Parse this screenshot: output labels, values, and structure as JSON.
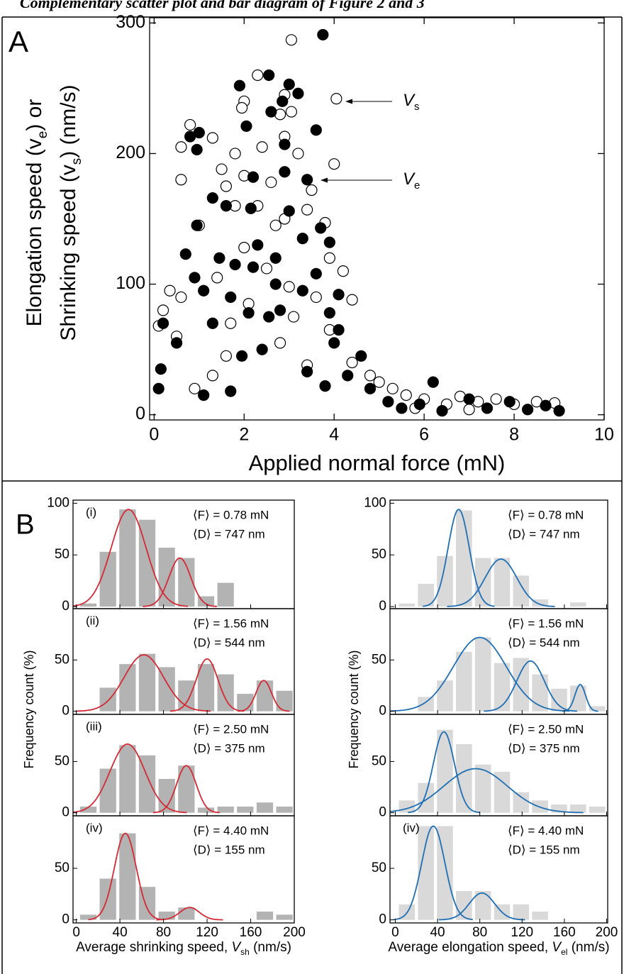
{
  "header": {
    "title": "Complementary scatter plot and bar diagram of Figure 2 and 3"
  },
  "panel_labels": [
    "A",
    "B"
  ],
  "chart_data": [
    {
      "type": "scatter",
      "xlabel": [
        {
          "text": "Applied normal force (mN)"
        }
      ],
      "ylabel": [
        [
          {
            "text": "Elongation speed (v"
          },
          {
            "text": "e",
            "style": "sub"
          },
          {
            "text": ") or"
          }
        ],
        [
          {
            "text": "Shrinking speed (v"
          },
          {
            "text": "s",
            "style": "sub"
          },
          {
            "text": ") (nm/s)"
          }
        ]
      ],
      "xlim": [
        -0.1,
        10
      ],
      "ylim": [
        -4,
        304
      ],
      "xticks": [
        0,
        2,
        4,
        6,
        8,
        10
      ],
      "yticks": [
        0,
        100,
        200,
        300
      ],
      "annotations": [
        [
          {
            "text": "V",
            "style": "italic"
          },
          {
            "text": "s",
            "style": "sub"
          }
        ],
        [
          {
            "text": "V",
            "style": "italic"
          },
          {
            "text": "e",
            "style": "sub"
          }
        ]
      ],
      "series": [
        {
          "marker": "open",
          "color": "#000000",
          "x": [
            3.05,
            2.3,
            4.05,
            2.9,
            2.0,
            1.95,
            3.05,
            2.8,
            0.8,
            1.3,
            0.6,
            1.8,
            2.4,
            4.0,
            3.2,
            2.9,
            1.5,
            2.0,
            3.5,
            2.6,
            1.6,
            0.6,
            1.8,
            2.3,
            3.4,
            2.9,
            3.8,
            1.0,
            2.7,
            2.0,
            3.9,
            2.5,
            1.4,
            0.35,
            0.6,
            3.0,
            4.2,
            3.6,
            0.2,
            2.1,
            1.7,
            3.9,
            4.4,
            0.1,
            0.5,
            1.6,
            4.4,
            3.4,
            4.8,
            5.0,
            5.3,
            5.6,
            6.0,
            6.5,
            6.8,
            7.2,
            7.6,
            8.0,
            8.5,
            8.9,
            5.8,
            7.0,
            1.3,
            0.9,
            2.8,
            3.1
          ],
          "y": [
            287,
            260,
            242,
            245,
            240,
            235,
            232,
            230,
            222,
            212,
            205,
            200,
            205,
            192,
            200,
            213,
            188,
            183,
            172,
            178,
            175,
            180,
            160,
            160,
            157,
            150,
            147,
            145,
            145,
            128,
            120,
            112,
            105,
            95,
            90,
            98,
            110,
            90,
            80,
            85,
            70,
            65,
            88,
            68,
            60,
            45,
            40,
            38,
            30,
            25,
            20,
            15,
            12,
            8,
            14,
            10,
            12,
            8,
            10,
            9,
            5,
            4,
            30,
            20,
            55,
            75
          ]
        },
        {
          "marker": "filled",
          "color": "#000000",
          "x": [
            3.75,
            2.55,
            1.9,
            3.0,
            3.2,
            2.85,
            2.6,
            3.6,
            2.05,
            1.0,
            0.8,
            0.95,
            2.9,
            2.2,
            3.4,
            2.9,
            1.3,
            1.6,
            3.0,
            2.15,
            0.95,
            3.7,
            3.3,
            2.3,
            0.7,
            1.45,
            2.7,
            3.9,
            1.8,
            2.2,
            0.9,
            3.6,
            1.1,
            4.1,
            1.7,
            2.7,
            3.3,
            2.1,
            2.8,
            3.9,
            1.3,
            0.2,
            4.1,
            0.5,
            2.4,
            1.95,
            0.15,
            1.1,
            1.7,
            3.4,
            4.3,
            4.6,
            4.8,
            5.2,
            5.5,
            5.9,
            6.2,
            6.4,
            7.0,
            7.4,
            7.9,
            8.3,
            8.7,
            9.0,
            0.1,
            4.0,
            3.8,
            2.55
          ],
          "y": [
            291,
            260,
            252,
            253,
            246,
            240,
            232,
            218,
            221,
            216,
            213,
            203,
            207,
            182,
            180,
            186,
            166,
            160,
            156,
            158,
            145,
            143,
            135,
            130,
            123,
            120,
            120,
            132,
            115,
            113,
            105,
            108,
            95,
            92,
            90,
            100,
            95,
            78,
            80,
            78,
            70,
            70,
            65,
            55,
            50,
            45,
            35,
            15,
            18,
            33,
            30,
            45,
            20,
            10,
            5,
            8,
            25,
            3,
            12,
            5,
            10,
            4,
            7,
            3,
            20,
            55,
            22,
            75
          ]
        }
      ]
    },
    {
      "type": "histogram",
      "label": "(i)",
      "stats": [
        "⟨F⟩ = 0.78 mN",
        "⟨D⟩ =  747 nm"
      ],
      "ylabel": "Frequency count (%)",
      "bins": [
        2,
        20,
        38,
        56,
        74,
        92,
        110,
        128,
        146
      ],
      "counts": [
        3,
        53,
        94,
        84,
        57,
        47,
        10,
        23
      ],
      "color": "#b3b3b3",
      "fit_color": "#d42a35",
      "fits": [
        {
          "mean": 48,
          "amp": 94,
          "sd": 16
        },
        {
          "mean": 95,
          "amp": 47,
          "sd": 10
        }
      ],
      "xlim": [
        -3,
        200
      ],
      "ylim": [
        -2,
        103
      ],
      "yticks": [
        0,
        50,
        100
      ]
    },
    {
      "type": "histogram",
      "label": "(ii)",
      "stats": [
        "⟨F⟩ = 1.56 mN",
        "⟨D⟩ = 544 nm"
      ],
      "bins": [
        20,
        38,
        56,
        74,
        92,
        110,
        128,
        146,
        164,
        182,
        200
      ],
      "counts": [
        23,
        46,
        56,
        43,
        30,
        46,
        36,
        17,
        30,
        20
      ],
      "color": "#b3b3b3",
      "fit_color": "#d42a35",
      "fits": [
        {
          "mean": 62,
          "amp": 55,
          "sd": 18
        },
        {
          "mean": 120,
          "amp": 51,
          "sd": 10
        },
        {
          "mean": 172,
          "amp": 30,
          "sd": 7
        }
      ],
      "xlim": [
        -3,
        200
      ],
      "ylim": [
        -3,
        100
      ],
      "yticks": [
        0,
        50
      ]
    },
    {
      "type": "histogram",
      "label": "(iii)",
      "stats": [
        "⟨F⟩ = 2.50 mN",
        "⟨D⟩ = 375 nm"
      ],
      "bins": [
        2,
        20,
        38,
        56,
        74,
        92,
        110,
        128,
        146,
        164,
        182,
        200
      ],
      "counts": [
        6,
        43,
        66,
        56,
        33,
        46,
        5,
        6,
        6,
        10,
        6
      ],
      "color": "#b3b3b3",
      "fit_color": "#d42a35",
      "fits": [
        {
          "mean": 47,
          "amp": 67,
          "sd": 16
        },
        {
          "mean": 101,
          "amp": 46,
          "sd": 9
        }
      ],
      "xlim": [
        -3,
        200
      ],
      "ylim": [
        -3,
        96
      ],
      "yticks": [
        0,
        50
      ]
    },
    {
      "type": "histogram",
      "label": "(iv)",
      "stats": [
        "⟨F⟩ = 4.40 mN",
        "⟨D⟩ = 155 nm"
      ],
      "xlabel": [
        {
          "text": "Average shrinking speed, "
        },
        {
          "text": "V",
          "style": "italic"
        },
        {
          "text": "sh",
          "style": "sub"
        },
        {
          "text": " (nm/s)"
        }
      ],
      "bins": [
        2,
        20,
        38,
        56,
        74,
        92,
        110,
        128,
        146,
        164,
        182,
        200
      ],
      "counts": [
        5,
        40,
        84,
        32,
        8,
        12,
        0,
        0,
        0,
        8,
        5
      ],
      "color": "#b3b3b3",
      "fit_color": "#d42a35",
      "fits": [
        {
          "mean": 45,
          "amp": 84,
          "sd": 10
        },
        {
          "mean": 104,
          "amp": 12,
          "sd": 9
        }
      ],
      "xlim": [
        -3,
        200
      ],
      "ylim": [
        -3,
        101
      ],
      "yticks": [
        0,
        50
      ],
      "xticks": [
        0,
        40,
        80,
        120,
        160,
        200
      ]
    },
    {
      "type": "histogram",
      "stats": [
        "⟨F⟩ = 0.78 mN",
        "⟨D⟩ =  747 nm"
      ],
      "ylabel": "Frequency count (%)",
      "bins": [
        2,
        20,
        38,
        56,
        74,
        92,
        110,
        128,
        146,
        164,
        182
      ],
      "counts": [
        3,
        22,
        49,
        93,
        47,
        47,
        30,
        7,
        0,
        4
      ],
      "color": "#d9d9d9",
      "fit_color": "#1f6fb4",
      "fits": [
        {
          "mean": 60,
          "amp": 94,
          "sd": 10
        },
        {
          "mean": 100,
          "amp": 46,
          "sd": 15
        }
      ],
      "xlim": [
        -5,
        201
      ],
      "ylim": [
        -2,
        103
      ],
      "yticks": [
        0,
        50,
        100
      ]
    },
    {
      "type": "histogram",
      "stats": [
        "⟨F⟩ = 1.56 mN",
        "⟨D⟩ = 544 nm"
      ],
      "bins": [
        20,
        38,
        56,
        74,
        92,
        110,
        128,
        146,
        164,
        182,
        200
      ],
      "counts": [
        14,
        30,
        58,
        72,
        47,
        52,
        36,
        22,
        25,
        5
      ],
      "color": "#d9d9d9",
      "fit_color": "#1f6fb4",
      "fits": [
        {
          "mean": 80,
          "amp": 72,
          "sd": 25
        },
        {
          "mean": 128,
          "amp": 49,
          "sd": 13
        },
        {
          "mean": 175,
          "amp": 26,
          "sd": 5
        }
      ],
      "xlim": [
        -5,
        201
      ],
      "ylim": [
        -3,
        100
      ],
      "yticks": [
        0,
        50
      ]
    },
    {
      "type": "histogram",
      "stats": [
        "⟨F⟩ = 2.50 mN",
        "⟨D⟩ = 375 nm"
      ],
      "bins": [
        2,
        20,
        38,
        56,
        74,
        92,
        110,
        128,
        146,
        164,
        182,
        200
      ],
      "counts": [
        12,
        29,
        81,
        67,
        47,
        40,
        20,
        12,
        8,
        8,
        6
      ],
      "color": "#d9d9d9",
      "fit_color": "#1f6fb4",
      "fits": [
        {
          "mean": 46,
          "amp": 79,
          "sd": 10
        },
        {
          "mean": 76,
          "amp": 43,
          "sd": 30
        }
      ],
      "xlim": [
        -5,
        201
      ],
      "ylim": [
        -3,
        96
      ],
      "yticks": [
        0,
        50
      ]
    },
    {
      "type": "histogram",
      "label": "(iv)",
      "stats": [
        "⟨F⟩ = 4.40 mN",
        "⟨D⟩ = 155 nm"
      ],
      "xlabel": [
        {
          "text": "Average elongation speed, "
        },
        {
          "text": "V",
          "style": "italic"
        },
        {
          "text": "el",
          "style": "sub"
        },
        {
          "text": " (nm/s)"
        }
      ],
      "bins": [
        2,
        20,
        38,
        56,
        74,
        92,
        110,
        128,
        146
      ],
      "counts": [
        15,
        91,
        91,
        28,
        28,
        15,
        15,
        8
      ],
      "color": "#d9d9d9",
      "fit_color": "#1f6fb4",
      "fits": [
        {
          "mean": 36,
          "amp": 91,
          "sd": 11
        },
        {
          "mean": 82,
          "amp": 26,
          "sd": 12
        }
      ],
      "xlim": [
        -5,
        201
      ],
      "ylim": [
        -3,
        101
      ],
      "yticks": [
        0,
        50
      ],
      "xticks": [
        0,
        40,
        80,
        120,
        160,
        200
      ]
    }
  ]
}
